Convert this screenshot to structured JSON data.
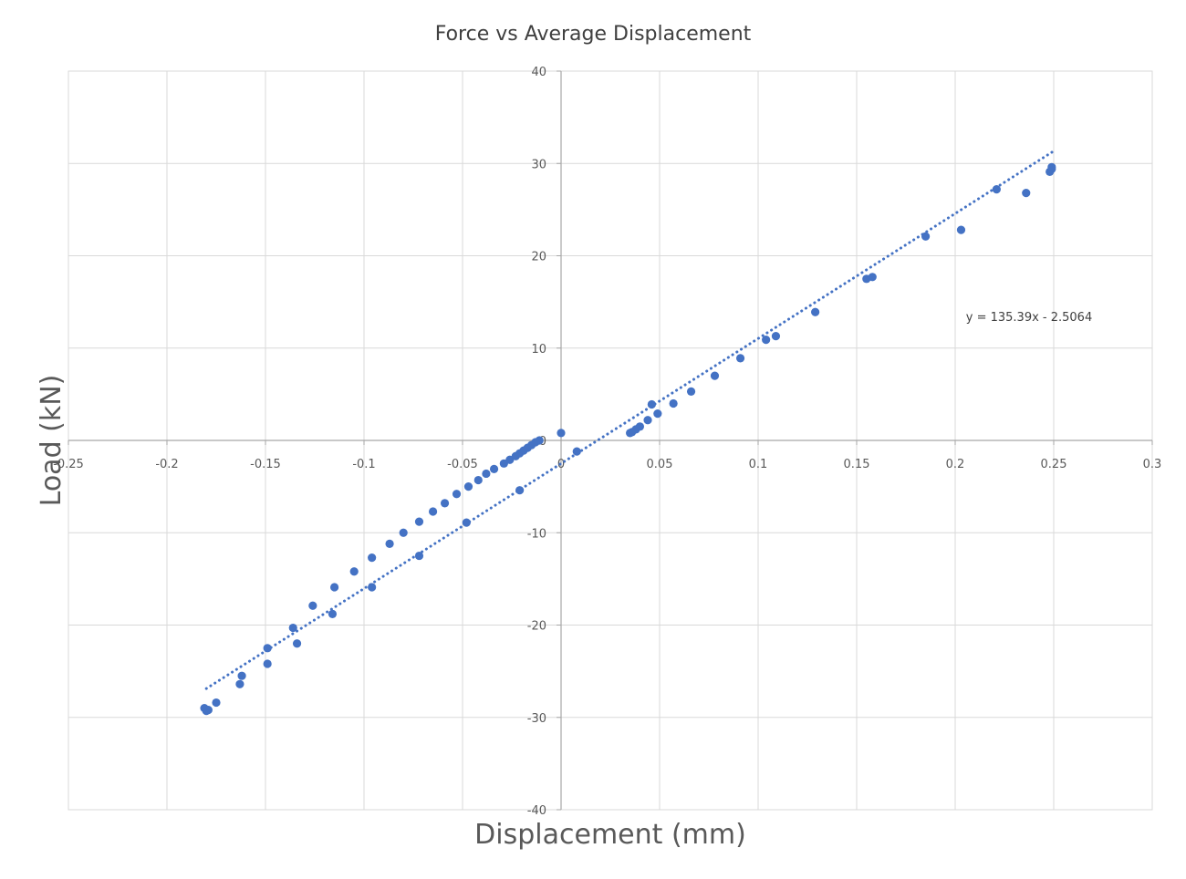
{
  "chart_data": {
    "type": "scatter",
    "title": "Force vs Average Displacement",
    "xlabel": "Displacement (mm)",
    "ylabel": "Load (kN)",
    "xlim": [
      -0.25,
      0.3
    ],
    "ylim": [
      -40,
      40
    ],
    "x_ticks": [
      "-0.25",
      "-0.2",
      "-0.15",
      "-0.1",
      "-0.05",
      "0",
      "0.05",
      "0.1",
      "0.15",
      "0.2",
      "0.25",
      "0.3"
    ],
    "y_ticks": [
      "-40",
      "-30",
      "-20",
      "-10",
      "0",
      "10",
      "20",
      "30",
      "40"
    ],
    "grid": true,
    "legend": "none",
    "marker_color": "#4472C4",
    "series": [
      {
        "points": [
          [
            -0.18,
            -29.3
          ],
          [
            -0.181,
            -29.0
          ],
          [
            -0.179,
            -29.2
          ],
          [
            -0.175,
            -28.4
          ],
          [
            -0.163,
            -26.4
          ],
          [
            -0.162,
            -25.5
          ],
          [
            -0.149,
            -22.5
          ],
          [
            -0.149,
            -24.2
          ],
          [
            -0.136,
            -20.3
          ],
          [
            -0.134,
            -22.0
          ],
          [
            -0.126,
            -17.9
          ],
          [
            -0.116,
            -18.8
          ],
          [
            -0.115,
            -15.9
          ],
          [
            -0.105,
            -14.2
          ],
          [
            -0.096,
            -15.9
          ],
          [
            -0.096,
            -12.7
          ],
          [
            -0.087,
            -11.2
          ],
          [
            -0.08,
            -10.0
          ],
          [
            -0.072,
            -8.8
          ],
          [
            -0.072,
            -12.5
          ],
          [
            -0.065,
            -7.7
          ],
          [
            -0.059,
            -6.8
          ],
          [
            -0.053,
            -5.8
          ],
          [
            -0.048,
            -8.9
          ],
          [
            -0.047,
            -5.0
          ],
          [
            -0.042,
            -4.3
          ],
          [
            -0.038,
            -3.6
          ],
          [
            -0.034,
            -3.1
          ],
          [
            -0.029,
            -2.5
          ],
          [
            -0.026,
            -2.1
          ],
          [
            -0.023,
            -1.7
          ],
          [
            -0.021,
            -5.4
          ],
          [
            -0.021,
            -1.4
          ],
          [
            -0.019,
            -1.1
          ],
          [
            -0.017,
            -0.8
          ],
          [
            -0.015,
            -0.5
          ],
          [
            -0.013,
            -0.2
          ],
          [
            -0.011,
            0.0
          ],
          [
            0.0,
            0.8
          ],
          [
            0.008,
            -1.2
          ],
          [
            0.035,
            0.8
          ],
          [
            0.036,
            0.9
          ],
          [
            0.038,
            1.2
          ],
          [
            0.04,
            1.5
          ],
          [
            0.044,
            2.2
          ],
          [
            0.046,
            3.9
          ],
          [
            0.049,
            2.9
          ],
          [
            0.057,
            4.0
          ],
          [
            0.066,
            5.3
          ],
          [
            0.078,
            7.0
          ],
          [
            0.091,
            8.9
          ],
          [
            0.104,
            10.9
          ],
          [
            0.109,
            11.3
          ],
          [
            0.129,
            13.9
          ],
          [
            0.155,
            17.5
          ],
          [
            0.158,
            17.7
          ],
          [
            0.185,
            22.1
          ],
          [
            0.203,
            22.8
          ],
          [
            0.221,
            27.2
          ],
          [
            0.236,
            26.8
          ],
          [
            0.248,
            29.1
          ],
          [
            0.249,
            29.4
          ],
          [
            0.249,
            29.6
          ]
        ]
      }
    ],
    "trendline": {
      "style": "dotted",
      "slope": 135.39,
      "intercept": -2.5064,
      "x_range": [
        -0.18,
        0.25
      ],
      "equation_label": "y = 135.39x - 2.5064"
    }
  }
}
